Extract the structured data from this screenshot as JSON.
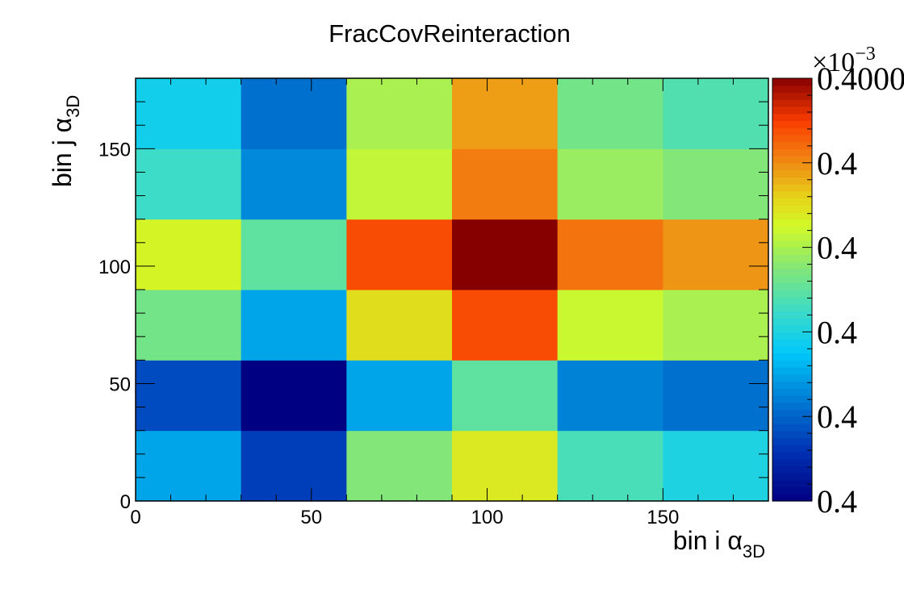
{
  "chart_data": {
    "type": "heatmap",
    "title": "FracCovReinteraction",
    "xlabel": {
      "main": "bin i α",
      "sub": "3D"
    },
    "ylabel": {
      "main": "bin j α",
      "sub": "3D"
    },
    "xlim": [
      0,
      180
    ],
    "ylim": [
      0,
      180
    ],
    "x_ticks": [
      0,
      50,
      100,
      150
    ],
    "y_ticks": [
      0,
      50,
      100,
      150
    ],
    "x_edges": [
      0,
      30,
      60,
      90,
      120,
      150,
      180
    ],
    "y_edges": [
      0,
      30,
      60,
      90,
      120,
      150,
      180
    ],
    "values": [
      [
        0.3,
        0.14,
        0.55,
        0.68,
        0.47,
        0.4
      ],
      [
        0.16,
        0.0,
        0.3,
        0.5,
        0.25,
        0.22
      ],
      [
        0.53,
        0.3,
        0.7,
        0.88,
        0.64,
        0.6
      ],
      [
        0.66,
        0.5,
        0.88,
        1.0,
        0.83,
        0.79
      ],
      [
        0.45,
        0.26,
        0.63,
        0.82,
        0.58,
        0.55
      ],
      [
        0.38,
        0.22,
        0.6,
        0.78,
        0.53,
        0.48
      ]
    ],
    "values_note": "rows ordered bottom (bin j 0-30) to top (bin j 150-180); normalized color-scale level 0..1",
    "colorbar": {
      "tick_labels": [
        "0.4",
        "0.4",
        "0.4",
        "0.4",
        "0.4",
        "0.4000"
      ],
      "exponent_prefix": "×10",
      "exponent": "−3",
      "palette": "rainbow-jet"
    },
    "grid": false,
    "legend": "none"
  }
}
